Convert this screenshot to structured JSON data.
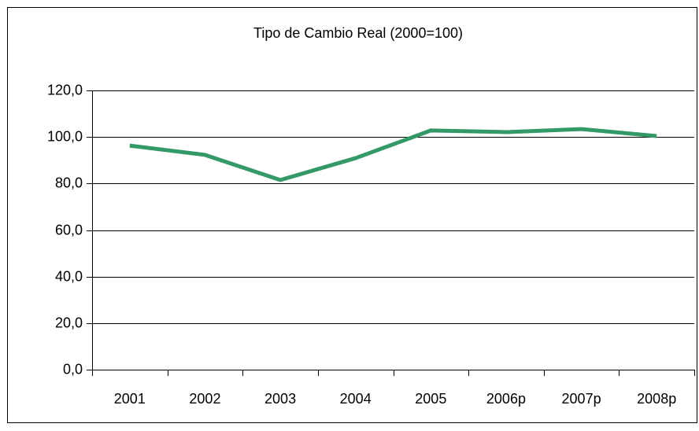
{
  "chart_data": {
    "type": "line",
    "title": "Tipo de Cambio Real (2000=100)",
    "categories": [
      "2001",
      "2002",
      "2003",
      "2004",
      "2005",
      "2006p",
      "2007p",
      "2008p"
    ],
    "series": [
      {
        "name": "Tipo de Cambio Real",
        "color": "#339966",
        "values": [
          96.3,
          92.3,
          81.5,
          90.9,
          102.8,
          102.1,
          103.4,
          100.4
        ]
      }
    ],
    "ylim": [
      0,
      120
    ],
    "yticks": [
      {
        "value": 0,
        "label": "0,0"
      },
      {
        "value": 20,
        "label": "20,0"
      },
      {
        "value": 40,
        "label": "40,0"
      },
      {
        "value": 60,
        "label": "60,0"
      },
      {
        "value": 80,
        "label": "80,0"
      },
      {
        "value": 100,
        "label": "100,0"
      },
      {
        "value": 120,
        "label": "120,0"
      }
    ],
    "grid": true
  }
}
